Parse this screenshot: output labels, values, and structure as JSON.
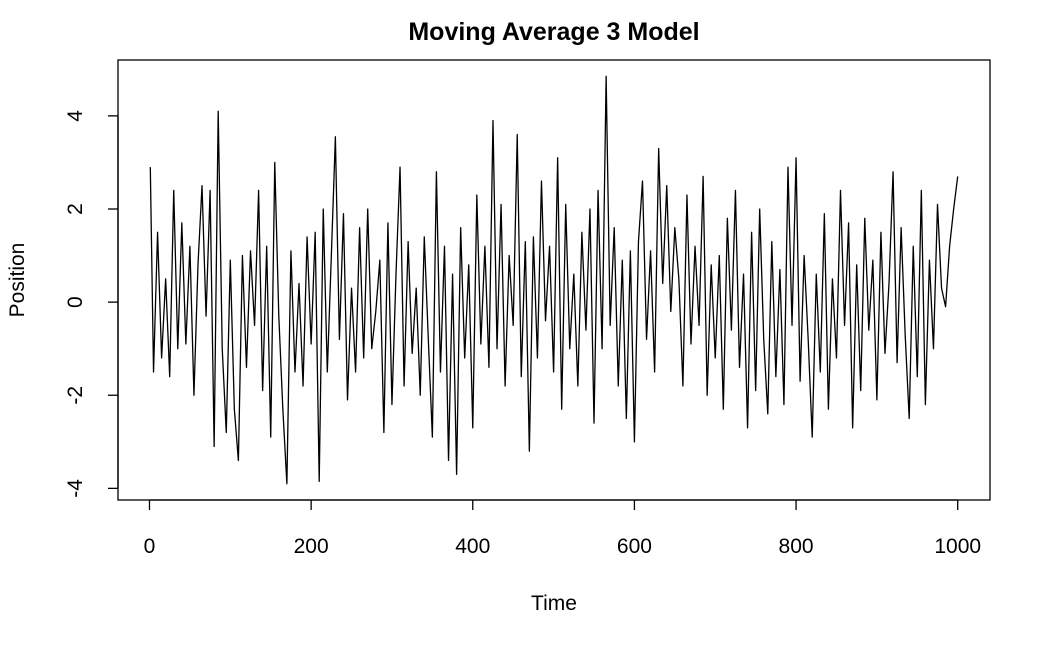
{
  "chart_data": {
    "type": "line",
    "title": "Moving Average 3 Model",
    "x_label": "Time",
    "y_label": "Position",
    "x": [
      1,
      5,
      10,
      15,
      20,
      25,
      30,
      35,
      40,
      45,
      50,
      55,
      60,
      65,
      70,
      75,
      80,
      85,
      90,
      95,
      100,
      105,
      110,
      115,
      120,
      125,
      130,
      135,
      140,
      145,
      150,
      155,
      160,
      165,
      170,
      175,
      180,
      185,
      190,
      195,
      200,
      205,
      210,
      215,
      220,
      225,
      230,
      235,
      240,
      245,
      250,
      255,
      260,
      265,
      270,
      275,
      280,
      285,
      290,
      295,
      300,
      305,
      310,
      315,
      320,
      325,
      330,
      335,
      340,
      345,
      350,
      355,
      360,
      365,
      370,
      375,
      380,
      385,
      390,
      395,
      400,
      405,
      410,
      415,
      420,
      425,
      430,
      435,
      440,
      445,
      450,
      455,
      460,
      465,
      470,
      475,
      480,
      485,
      490,
      495,
      500,
      505,
      510,
      515,
      520,
      525,
      530,
      535,
      540,
      545,
      550,
      555,
      560,
      565,
      570,
      575,
      580,
      585,
      590,
      595,
      600,
      605,
      610,
      615,
      620,
      625,
      630,
      635,
      640,
      645,
      650,
      655,
      660,
      665,
      670,
      675,
      680,
      685,
      690,
      695,
      700,
      705,
      710,
      715,
      720,
      725,
      730,
      735,
      740,
      745,
      750,
      755,
      760,
      765,
      770,
      775,
      780,
      785,
      790,
      795,
      800,
      805,
      810,
      815,
      820,
      825,
      830,
      835,
      840,
      845,
      850,
      855,
      860,
      865,
      870,
      875,
      880,
      885,
      890,
      895,
      900,
      905,
      910,
      915,
      920,
      925,
      930,
      935,
      940,
      945,
      950,
      955,
      960,
      965,
      970,
      975,
      980,
      985,
      990,
      995,
      1000
    ],
    "series": [
      {
        "color": "#000000",
        "values": [
          2.9,
          -1.5,
          1.5,
          -1.2,
          0.5,
          -1.6,
          2.4,
          -1.0,
          1.7,
          -0.9,
          1.2,
          -2.0,
          0.8,
          2.5,
          -0.3,
          2.4,
          -3.1,
          4.1,
          -1.0,
          -2.8,
          0.9,
          -2.3,
          -3.4,
          1.0,
          -1.4,
          1.1,
          -0.5,
          2.4,
          -1.9,
          1.2,
          -2.9,
          3.0,
          -0.3,
          -2.3,
          -3.9,
          1.1,
          -1.5,
          0.4,
          -1.8,
          1.4,
          -0.9,
          1.5,
          -3.85,
          2.0,
          -1.5,
          1.0,
          3.55,
          -0.8,
          1.9,
          -2.1,
          0.3,
          -1.5,
          1.6,
          -1.2,
          2.0,
          -1.0,
          -0.2,
          0.9,
          -2.8,
          1.7,
          -2.2,
          0.6,
          2.9,
          -1.8,
          1.3,
          -1.1,
          0.3,
          -2.0,
          1.4,
          -0.8,
          -2.9,
          2.8,
          -1.5,
          1.2,
          -3.4,
          0.6,
          -3.7,
          1.6,
          -1.2,
          0.8,
          -2.7,
          2.3,
          -0.9,
          1.2,
          -1.4,
          3.9,
          -1.0,
          2.1,
          -1.8,
          1.0,
          -0.5,
          3.6,
          -1.6,
          1.3,
          -3.2,
          1.4,
          -1.2,
          2.6,
          -0.4,
          1.2,
          -1.5,
          3.1,
          -2.3,
          2.1,
          -1.0,
          0.6,
          -1.8,
          1.5,
          -0.6,
          2.0,
          -2.6,
          2.4,
          -1.0,
          4.85,
          -0.5,
          1.6,
          -1.8,
          0.9,
          -2.5,
          1.1,
          -3.0,
          1.3,
          2.6,
          -0.8,
          1.1,
          -1.5,
          3.3,
          0.4,
          2.5,
          -0.2,
          1.6,
          0.5,
          -1.8,
          2.3,
          -0.9,
          1.2,
          -0.5,
          2.7,
          -2.0,
          0.8,
          -1.2,
          1.0,
          -2.3,
          1.8,
          -0.6,
          2.4,
          -1.4,
          0.6,
          -2.7,
          1.5,
          -1.9,
          2.0,
          -0.8,
          -2.4,
          1.3,
          -1.6,
          0.7,
          -2.2,
          2.9,
          -0.5,
          3.1,
          -1.7,
          1.0,
          -0.8,
          -2.9,
          0.6,
          -1.5,
          1.9,
          -2.3,
          0.5,
          -1.2,
          2.4,
          -0.5,
          1.7,
          -2.7,
          0.8,
          -1.9,
          1.8,
          -0.6,
          0.9,
          -2.1,
          1.5,
          -1.1,
          0.4,
          2.8,
          -1.3,
          1.6,
          -0.7,
          -2.5,
          1.2,
          -1.6,
          2.4,
          -2.2,
          0.9,
          -1.0,
          2.1,
          0.3,
          -0.1,
          1.2,
          2.0,
          2.7
        ]
      }
    ],
    "xlim": [
      -38.96,
      1039.96
    ],
    "ylim": [
      -4.25,
      5.2
    ],
    "xticks": [
      0,
      200,
      400,
      600,
      800,
      1000
    ],
    "yticks": [
      -4,
      -2,
      0,
      2,
      4
    ]
  }
}
